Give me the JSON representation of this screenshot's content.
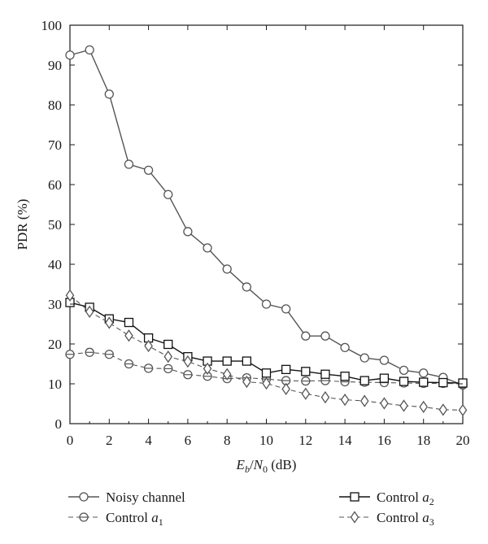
{
  "chart_data": {
    "type": "line",
    "title": "",
    "xlabel": {
      "var": "E",
      "sub": "b",
      "sep": "/",
      "var2": "N",
      "sub2": "0",
      "unit": "(dB)"
    },
    "ylabel": "PDR (%)",
    "xlim": [
      0,
      20
    ],
    "ylim": [
      0,
      100
    ],
    "xticks": [
      0,
      2,
      4,
      6,
      8,
      10,
      12,
      14,
      16,
      18,
      20
    ],
    "yticks": [
      0,
      10,
      20,
      30,
      40,
      50,
      60,
      70,
      80,
      90,
      100
    ],
    "grid": false,
    "legend_position": "bottom",
    "x": [
      0,
      1,
      2,
      3,
      4,
      5,
      6,
      7,
      8,
      9,
      10,
      11,
      12,
      13,
      14,
      15,
      16,
      17,
      18,
      19,
      20
    ],
    "series": [
      {
        "name": "Noisy channel",
        "legend": {
          "text": "Noisy channel"
        },
        "marker": "circle",
        "dash": "solid",
        "color": "#555555",
        "values": [
          92.5,
          93.8,
          82.7,
          65.1,
          63.6,
          57.5,
          48.2,
          44.1,
          38.8,
          34.3,
          30.0,
          28.8,
          22.0,
          22.0,
          19.1,
          16.5,
          15.9,
          13.4,
          12.7,
          11.6,
          9.7
        ]
      },
      {
        "name": "Control a1",
        "legend": {
          "text": "Control ",
          "sym": "a",
          "sub": "1"
        },
        "marker": "circle-bar",
        "dash": "dashed",
        "color": "#555555",
        "values": [
          17.4,
          17.9,
          17.4,
          15.0,
          13.9,
          13.8,
          12.3,
          11.9,
          11.3,
          11.5,
          11.2,
          10.8,
          10.7,
          10.8,
          10.5,
          10.4,
          10.3,
          10.2,
          10.1,
          10.1,
          10.0
        ]
      },
      {
        "name": "Control a2",
        "legend": {
          "text": "Control ",
          "sym": "a",
          "sub": "2"
        },
        "marker": "square",
        "dash": "solid",
        "color": "#111111",
        "values": [
          30.4,
          29.2,
          26.3,
          25.4,
          21.5,
          19.9,
          16.8,
          15.7,
          15.7,
          15.7,
          12.7,
          13.6,
          13.1,
          12.4,
          11.9,
          10.8,
          11.4,
          10.6,
          10.4,
          10.3,
          10.2
        ]
      },
      {
        "name": "Control a3",
        "legend": {
          "text": "Control ",
          "sym": "a",
          "sub": "3"
        },
        "marker": "diamond",
        "dash": "dashed",
        "color": "#555555",
        "values": [
          32.2,
          28.1,
          25.3,
          22.1,
          19.5,
          16.8,
          15.6,
          13.8,
          12.4,
          10.5,
          10.1,
          8.7,
          7.5,
          6.6,
          6.0,
          5.7,
          5.1,
          4.5,
          4.2,
          3.5,
          3.4
        ]
      }
    ]
  }
}
